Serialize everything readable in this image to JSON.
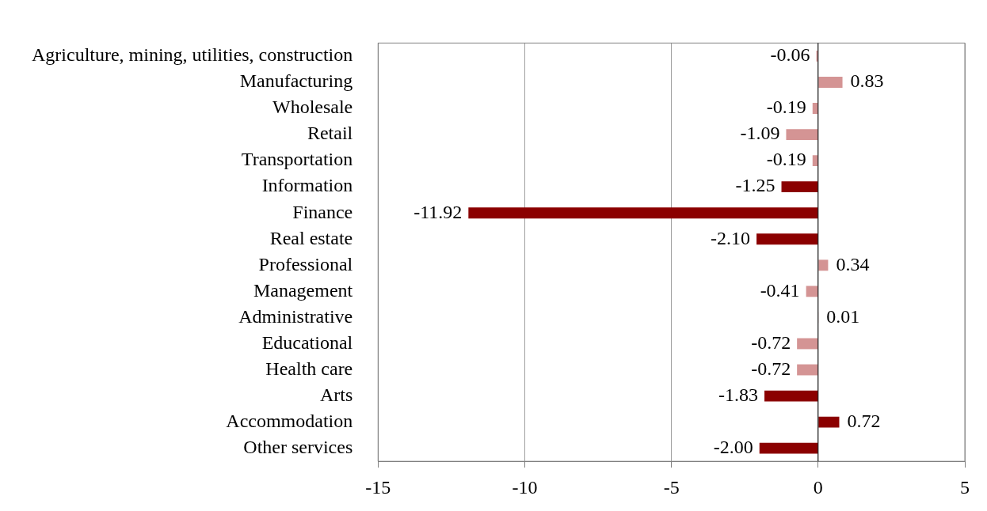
{
  "chart_data": {
    "type": "bar",
    "orientation": "horizontal",
    "categories": [
      "Agriculture, mining, utilities, construction",
      "Manufacturing",
      "Wholesale",
      "Retail",
      "Transportation",
      "Information",
      "Finance",
      "Real estate",
      "Professional",
      "Management",
      "Administrative",
      "Educational",
      "Health care",
      "Arts",
      "Accommodation",
      "Other services"
    ],
    "values": [
      -0.06,
      0.83,
      -0.19,
      -1.09,
      -0.19,
      -1.25,
      -11.92,
      -2.1,
      0.34,
      -0.41,
      0.01,
      -0.72,
      -0.72,
      -1.83,
      0.72,
      -2.0
    ],
    "value_labels": [
      "-0.06",
      "0.83",
      "-0.19",
      "-1.09",
      "-0.19",
      "-1.25",
      "-11.92",
      "-2.10",
      "0.34",
      "-0.41",
      "0.01",
      "-0.72",
      "-0.72",
      "-1.83",
      "0.72",
      "-2.00"
    ],
    "colors": [
      "#d49494",
      "#d49494",
      "#d49494",
      "#d49494",
      "#d49494",
      "#8b0000",
      "#8b0000",
      "#8b0000",
      "#d49494",
      "#d49494",
      "#d49494",
      "#d49494",
      "#d49494",
      "#8b0000",
      "#8b0000",
      "#8b0000"
    ],
    "xlim": [
      -15,
      5
    ],
    "xticks": [
      -15,
      -10,
      -5,
      0,
      5
    ],
    "grid": "x",
    "legend": false
  }
}
